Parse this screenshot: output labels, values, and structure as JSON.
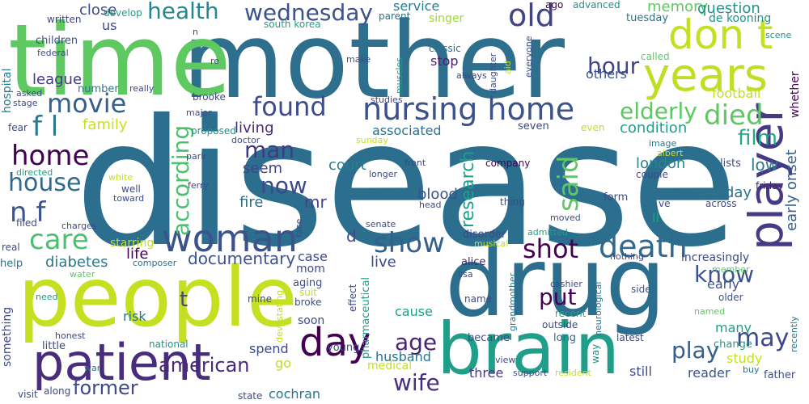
{
  "words": [
    {
      "text": "disease",
      "color": "#2b6e8e"
    },
    {
      "text": "mother",
      "color": "#2e6f8e"
    },
    {
      "text": "time",
      "color": "#5fc961"
    },
    {
      "text": "people",
      "color": "#c5e021"
    },
    {
      "text": "drug",
      "color": "#2c6e8e"
    },
    {
      "text": "brain",
      "color": "#1f9e89"
    },
    {
      "text": "patient",
      "color": "#472d7b"
    },
    {
      "text": "years",
      "color": "#c0de26"
    },
    {
      "text": "player",
      "color": "#443b84"
    },
    {
      "text": "woman",
      "color": "#3a538b"
    },
    {
      "text": "don t",
      "color": "#c5e021"
    },
    {
      "text": "nursing home",
      "color": "#3b528b"
    },
    {
      "text": "day",
      "color": "#440154"
    },
    {
      "text": "death",
      "color": "#31688e"
    },
    {
      "text": "found",
      "color": "#3e4a89"
    },
    {
      "text": "movie",
      "color": "#355f8d"
    },
    {
      "text": "old",
      "color": "#414487"
    },
    {
      "text": "show",
      "color": "#355f8d"
    },
    {
      "text": "care",
      "color": "#4ac16d"
    },
    {
      "text": "home",
      "color": "#440154"
    },
    {
      "text": "house",
      "color": "#31688e"
    },
    {
      "text": "n f",
      "color": "#3a548c"
    },
    {
      "text": "f l",
      "color": "#2a788e"
    },
    {
      "text": "health",
      "color": "#24878e"
    },
    {
      "text": "wednesday",
      "color": "#3b528b"
    },
    {
      "text": "elderly",
      "color": "#5ec962"
    },
    {
      "text": "died",
      "color": "#5ec962"
    },
    {
      "text": "said",
      "color": "#5ec962"
    },
    {
      "text": "hour",
      "color": "#414487"
    },
    {
      "text": "according",
      "color": "#4ac16d"
    },
    {
      "text": "man",
      "color": "#443983"
    },
    {
      "text": "now",
      "color": "#3e4989"
    },
    {
      "text": "shot",
      "color": "#440154"
    },
    {
      "text": "know",
      "color": "#3b528b"
    },
    {
      "text": "may",
      "color": "#3e4989"
    },
    {
      "text": "put",
      "color": "#440154"
    },
    {
      "text": "american",
      "color": "#482878"
    },
    {
      "text": "former",
      "color": "#3e4a89"
    },
    {
      "text": "wife",
      "color": "#472d7b"
    },
    {
      "text": "age",
      "color": "#482475"
    },
    {
      "text": "play",
      "color": "#355f8d"
    },
    {
      "text": "research",
      "color": "#1f9e89"
    },
    {
      "text": "film",
      "color": "#22a884"
    },
    {
      "text": "documentary",
      "color": "#3b528b"
    },
    {
      "text": "close",
      "color": "#3e4a89"
    },
    {
      "text": "memory",
      "color": "#5ec962"
    },
    {
      "text": "question",
      "color": "#21918c"
    },
    {
      "text": "de kooning",
      "color": "#21918c"
    },
    {
      "text": "family",
      "color": "#c8e020"
    },
    {
      "text": "league",
      "color": "#443983"
    },
    {
      "text": "diabetes",
      "color": "#2a788e"
    },
    {
      "text": "life",
      "color": "#440154"
    },
    {
      "text": "early onset",
      "color": "#355f8d"
    },
    {
      "text": "london",
      "color": "#25858e"
    },
    {
      "text": "low",
      "color": "#2a788e"
    },
    {
      "text": "monday",
      "color": "#2c728e"
    },
    {
      "text": "condition",
      "color": "#1f9e89"
    },
    {
      "text": "associated",
      "color": "#2c728e"
    },
    {
      "text": "living",
      "color": "#482878"
    },
    {
      "text": "seem",
      "color": "#404688"
    },
    {
      "text": "court",
      "color": "#287d8e"
    },
    {
      "text": "fire",
      "color": "#2e6e8e"
    },
    {
      "text": "mr",
      "color": "#414487"
    },
    {
      "text": "blood",
      "color": "#3b528b"
    },
    {
      "text": "service",
      "color": "#287c8e"
    },
    {
      "text": "singer",
      "color": "#a0da39"
    },
    {
      "text": "stop",
      "color": "#482173"
    },
    {
      "text": "others",
      "color": "#3b528b"
    },
    {
      "text": "football",
      "color": "#c2df23"
    },
    {
      "text": "ago",
      "color": "#440154"
    },
    {
      "text": "advanced",
      "color": "#21918c"
    },
    {
      "text": "tuesday",
      "color": "#2c728e"
    },
    {
      "text": "us",
      "color": "#404688"
    },
    {
      "text": "children",
      "color": "#3e4a89"
    },
    {
      "text": "hospital",
      "color": "#2a788e"
    },
    {
      "text": "number",
      "color": "#2a788e"
    },
    {
      "text": "written",
      "color": "#404688"
    },
    {
      "text": "develop",
      "color": "#1f9e89"
    },
    {
      "text": "south korea",
      "color": "#1f9e89"
    },
    {
      "text": "parent",
      "color": "#2c728e"
    },
    {
      "text": "classic",
      "color": "#2c728e"
    },
    {
      "text": "everyone",
      "color": "#3e4989"
    },
    {
      "text": "scene",
      "color": "#21918c"
    },
    {
      "text": "called",
      "color": "#5ec962"
    },
    {
      "text": "whether",
      "color": "#440154"
    },
    {
      "text": "lists",
      "color": "#3e4989"
    },
    {
      "text": "friday",
      "color": "#481f70"
    },
    {
      "text": "image",
      "color": "#2a788e"
    },
    {
      "text": "albert",
      "color": "#c0de26"
    },
    {
      "text": "couple",
      "color": "#3e4a89"
    },
    {
      "text": "increasingly",
      "color": "#3e4989"
    },
    {
      "text": "early",
      "color": "#3b528b"
    },
    {
      "text": "many",
      "color": "#1fa088"
    },
    {
      "text": "change",
      "color": "#1f9e89"
    },
    {
      "text": "study",
      "color": "#c2df23"
    },
    {
      "text": "reader",
      "color": "#3b528b"
    },
    {
      "text": "still",
      "color": "#3e4989"
    },
    {
      "text": "recently",
      "color": "#2a788e"
    },
    {
      "text": "father",
      "color": "#3b528b"
    },
    {
      "text": "buy",
      "color": "#2c728e"
    },
    {
      "text": "older",
      "color": "#3b528b"
    },
    {
      "text": "named",
      "color": "#5ec962"
    },
    {
      "text": "member",
      "color": "#5ec962"
    },
    {
      "text": "side",
      "color": "#3b528b"
    },
    {
      "text": "latest",
      "color": "#3e4a89"
    },
    {
      "text": "neurological",
      "color": "#2c728e"
    },
    {
      "text": "cashier",
      "color": "#3e4a89"
    },
    {
      "text": "recent",
      "color": "#1fa088"
    },
    {
      "text": "outside",
      "color": "#3e4a89"
    },
    {
      "text": "long",
      "color": "#31688e"
    },
    {
      "text": "became",
      "color": "#3e4989"
    },
    {
      "text": "way",
      "color": "#21918c"
    },
    {
      "text": "three",
      "color": "#443983"
    },
    {
      "text": "view",
      "color": "#3e4989"
    },
    {
      "text": "support",
      "color": "#3e4a89"
    },
    {
      "text": "resident",
      "color": "#c2df23"
    },
    {
      "text": "name",
      "color": "#414487"
    },
    {
      "text": "grandmother",
      "color": "#2a788e"
    },
    {
      "text": "alice",
      "color": "#482475"
    },
    {
      "text": "lisa",
      "color": "#3e4a89"
    },
    {
      "text": "musical",
      "color": "#c0de26"
    },
    {
      "text": "nothing",
      "color": "#414487"
    },
    {
      "text": "ll",
      "color": "#1f9e89"
    },
    {
      "text": "ve",
      "color": "#3e4989"
    },
    {
      "text": "across",
      "color": "#3e4a89"
    },
    {
      "text": "moved",
      "color": "#3e4a89"
    },
    {
      "text": "admitted",
      "color": "#1fa088"
    },
    {
      "text": "thing",
      "color": "#3e4a89"
    },
    {
      "text": "form",
      "color": "#3e4a89"
    },
    {
      "text": "seven",
      "color": "#3e4a89"
    },
    {
      "text": "even",
      "color": "#c2df23"
    },
    {
      "text": "company",
      "color": "#440154"
    },
    {
      "text": "disorder",
      "color": "#3e4a89"
    },
    {
      "text": "effect",
      "color": "#3e4a89"
    },
    {
      "text": "pharmaceutical",
      "color": "#1fa088"
    },
    {
      "text": "d",
      "color": "#3e4a89"
    },
    {
      "text": "live",
      "color": "#3e4a89"
    },
    {
      "text": "cause",
      "color": "#1fa088"
    },
    {
      "text": "husband",
      "color": "#2c728e"
    },
    {
      "text": "medical",
      "color": "#c2df23"
    },
    {
      "text": "young",
      "color": "#3e4a89"
    },
    {
      "text": "soon",
      "color": "#3e4a89"
    },
    {
      "text": "broke",
      "color": "#3e4a89"
    },
    {
      "text": "suit",
      "color": "#c2df23"
    },
    {
      "text": "devastating",
      "color": "#c2df23"
    },
    {
      "text": "mine",
      "color": "#3e4a89"
    },
    {
      "text": "aging",
      "color": "#3e4a89"
    },
    {
      "text": "mom",
      "color": "#3e4a89"
    },
    {
      "text": "case",
      "color": "#3e4a89"
    },
    {
      "text": "starring",
      "color": "#c2df23"
    },
    {
      "text": "risk",
      "color": "#2c728e"
    },
    {
      "text": "composer",
      "color": "#2c728e"
    },
    {
      "text": "t",
      "color": "#414487"
    },
    {
      "text": "spend",
      "color": "#3e4a89"
    },
    {
      "text": "go",
      "color": "#c2df23"
    },
    {
      "text": "cochran",
      "color": "#2c728e"
    },
    {
      "text": "state",
      "color": "#3e4a89"
    },
    {
      "text": "national",
      "color": "#21918c"
    },
    {
      "text": "war",
      "color": "#2c728e"
    },
    {
      "text": "along",
      "color": "#3e4a89"
    },
    {
      "text": "visit",
      "color": "#3e4a89"
    },
    {
      "text": "honest",
      "color": "#3e4a89"
    },
    {
      "text": "little",
      "color": "#3e4a89"
    },
    {
      "text": "something",
      "color": "#3e4a89"
    },
    {
      "text": "need",
      "color": "#1fa088"
    },
    {
      "text": "water",
      "color": "#5ec962"
    },
    {
      "text": "help",
      "color": "#2c728e"
    },
    {
      "text": "real",
      "color": "#3e4a89"
    },
    {
      "text": "charges",
      "color": "#3e4a89"
    },
    {
      "text": "filed",
      "color": "#3e4a89"
    },
    {
      "text": "white",
      "color": "#c2df23"
    },
    {
      "text": "toward",
      "color": "#3e4a89"
    },
    {
      "text": "well",
      "color": "#3e4a89"
    },
    {
      "text": "directed",
      "color": "#1fa088"
    },
    {
      "text": "ferry",
      "color": "#3e4a89"
    },
    {
      "text": "park",
      "color": "#3e4a89"
    },
    {
      "text": "doctor",
      "color": "#3e4a89"
    },
    {
      "text": "proposed",
      "color": "#21918c"
    },
    {
      "text": "brooke",
      "color": "#3e4a89"
    },
    {
      "text": "major",
      "color": "#3e4a89"
    },
    {
      "text": "fear",
      "color": "#3e4a89"
    },
    {
      "text": "stage",
      "color": "#3e4a89"
    },
    {
      "text": "asked",
      "color": "#3e4a89"
    },
    {
      "text": "really",
      "color": "#3e4a89"
    },
    {
      "text": "federal",
      "color": "#3e4a89"
    },
    {
      "text": "n",
      "color": "#3e4a89"
    },
    {
      "text": "re",
      "color": "#3e4a89"
    },
    {
      "text": "make",
      "color": "#3e4a89"
    },
    {
      "text": "muscles",
      "color": "#1fa088"
    },
    {
      "text": "studies",
      "color": "#3e4a89"
    },
    {
      "text": "always",
      "color": "#3e4a89"
    },
    {
      "text": "daughter",
      "color": "#3e4a89"
    },
    {
      "text": "aid",
      "color": "#c2df23"
    },
    {
      "text": "sunday",
      "color": "#c2df23"
    },
    {
      "text": "front",
      "color": "#3e4a89"
    },
    {
      "text": "longer",
      "color": "#3e4a89"
    },
    {
      "text": "head",
      "color": "#3e4a89"
    },
    {
      "text": "senate",
      "color": "#3e4a89"
    },
    {
      "text": "face",
      "color": "#3e4a89"
    }
  ]
}
